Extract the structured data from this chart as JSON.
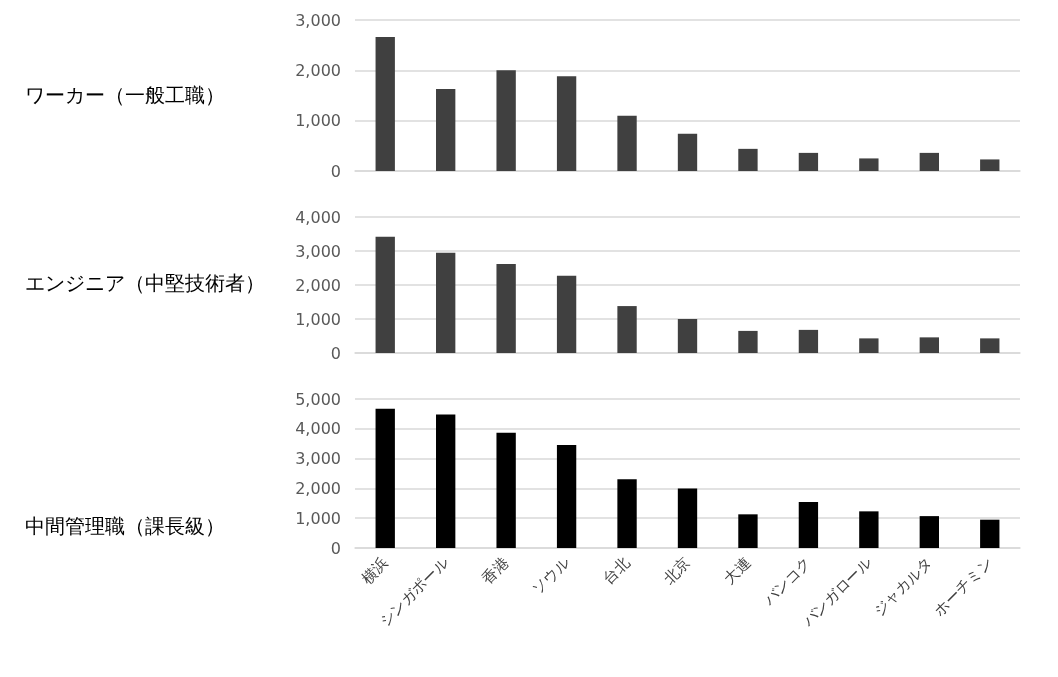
{
  "chart_data": [
    {
      "type": "bar",
      "title": "ワーカー（一般工職）",
      "categories": [
        null,
        null,
        null,
        null,
        null,
        null,
        null,
        null,
        null,
        null,
        null
      ],
      "values": [
        2660,
        1630,
        2000,
        1880,
        1100,
        740,
        440,
        360,
        250,
        360,
        230
      ],
      "color": "#404040",
      "ylim": [
        0,
        3000
      ],
      "yticks": [
        {
          "value": 0,
          "label": "0"
        },
        {
          "value": 1000,
          "label": "1,000"
        },
        {
          "value": 2000,
          "label": "2,000"
        },
        {
          "value": 3000,
          "label": "3,000"
        }
      ],
      "grid": "y",
      "tick_labels": "y"
    },
    {
      "type": "bar",
      "title": "エンジニア（中堅技術者）",
      "categories": [
        null,
        null,
        null,
        null,
        null,
        null,
        null,
        null,
        null,
        null,
        null
      ],
      "values": [
        3420,
        2950,
        2620,
        2270,
        1380,
        1000,
        650,
        680,
        430,
        460,
        430
      ],
      "color": "#404040",
      "ylim": [
        0,
        4000
      ],
      "yticks": [
        {
          "value": 0,
          "label": "0"
        },
        {
          "value": 1000,
          "label": "1,000"
        },
        {
          "value": 2000,
          "label": "2,000"
        },
        {
          "value": 3000,
          "label": "3,000"
        },
        {
          "value": 4000,
          "label": "4,000"
        }
      ],
      "grid": "y",
      "tick_labels": "y"
    },
    {
      "type": "bar",
      "title": "中間管理職（課長級）",
      "categories": [
        "横浜",
        "シンガポール",
        "香港",
        "ソウル",
        "台北",
        "北京",
        "大連",
        "バンコク",
        "バンガロール",
        "ジャカルタ",
        "ホーチミン"
      ],
      "values": [
        4670,
        4480,
        3870,
        3460,
        2310,
        2000,
        1130,
        1540,
        1230,
        1070,
        950
      ],
      "color": "#000000",
      "ylim": [
        0,
        5000
      ],
      "yticks": [
        {
          "value": 0,
          "label": "0"
        },
        {
          "value": 1000,
          "label": "1,000"
        },
        {
          "value": 2000,
          "label": "2,000"
        },
        {
          "value": 3000,
          "label": "3,000"
        },
        {
          "value": 4000,
          "label": "4,000"
        },
        {
          "value": 5000,
          "label": "5,000"
        }
      ],
      "grid": "y"
    }
  ]
}
